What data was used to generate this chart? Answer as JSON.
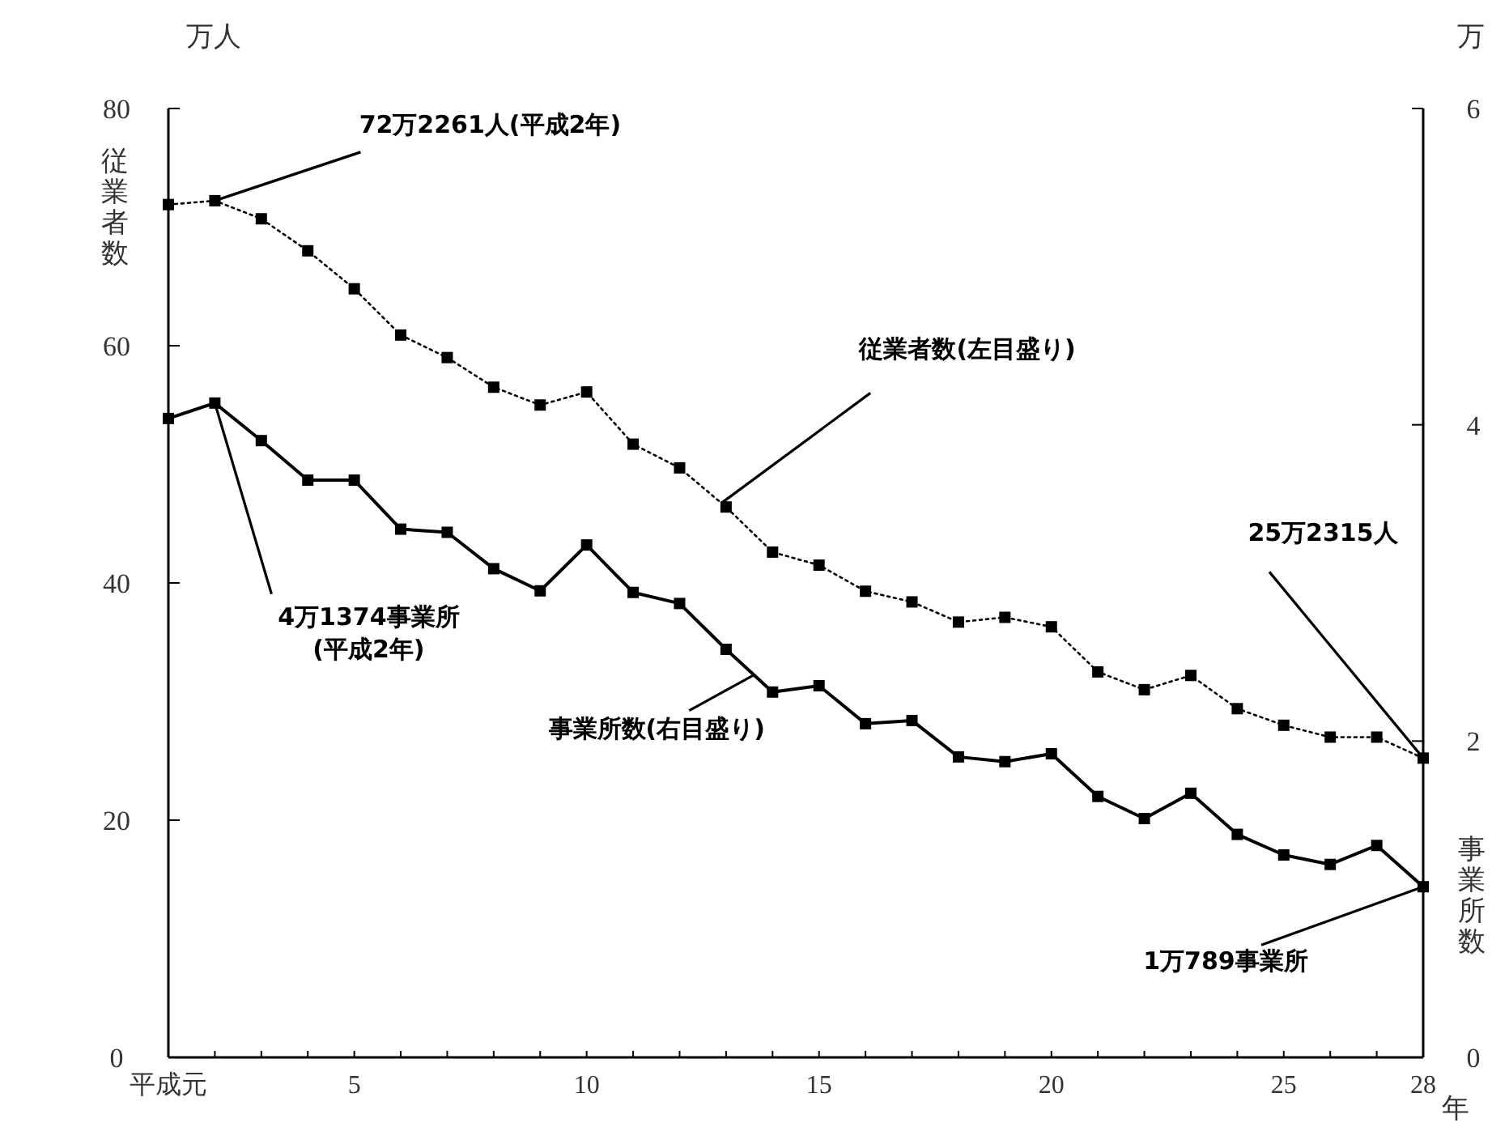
{
  "chart_data": {
    "type": "line",
    "ylabel": "従業者数",
    "y2label": "事業所数",
    "xlabel": "年",
    "annotations": [
      "万人",
      "万"
    ],
    "x": [
      1,
      2,
      3,
      4,
      5,
      6,
      7,
      8,
      9,
      10,
      11,
      12,
      13,
      14,
      15,
      16,
      17,
      18,
      19,
      20,
      21,
      22,
      23,
      24,
      25,
      26,
      27,
      28
    ],
    "xlim": [
      1,
      28
    ],
    "xticks": [
      {
        "value": 1,
        "label": "平成元"
      },
      {
        "value": 2,
        "label": null
      },
      {
        "value": 3,
        "label": null
      },
      {
        "value": 4,
        "label": null
      },
      5,
      {
        "value": 6,
        "label": null
      },
      {
        "value": 7,
        "label": null
      },
      {
        "value": 8,
        "label": null
      },
      {
        "value": 9,
        "label": null
      },
      10,
      {
        "value": 11,
        "label": null
      },
      {
        "value": 12,
        "label": null
      },
      {
        "value": 13,
        "label": null
      },
      {
        "value": 14,
        "label": null
      },
      15,
      {
        "value": 16,
        "label": null
      },
      {
        "value": 17,
        "label": null
      },
      {
        "value": 18,
        "label": null
      },
      {
        "value": 19,
        "label": null
      },
      20,
      {
        "value": 21,
        "label": null
      },
      {
        "value": 22,
        "label": null
      },
      {
        "value": 23,
        "label": null
      },
      {
        "value": 24,
        "label": null
      },
      25,
      {
        "value": 26,
        "label": null
      },
      {
        "value": 27,
        "label": null
      },
      28
    ],
    "ylim": [
      0,
      80
    ],
    "yticks": [
      0,
      20,
      40,
      60,
      80
    ],
    "y2lim": [
      0,
      6
    ],
    "y2ticks": [
      0,
      2,
      4,
      6
    ],
    "marker": "square",
    "grid": false,
    "series": [
      {
        "name": "従業者数(左目盛り)",
        "color": "#000000",
        "line_style": "dotted",
        "values": [
          71.9,
          72.2261,
          70.7,
          68.0,
          64.8,
          60.9,
          59.0,
          56.5,
          55.0,
          56.1,
          51.7,
          49.7,
          46.4,
          42.6,
          41.5,
          39.3,
          38.4,
          36.7,
          37.1,
          36.3,
          32.5,
          31.0,
          32.2,
          29.4,
          28.0,
          27.0,
          27.0,
          25.2315
        ],
        "value_labels": [
          null,
          "72万2261人(平成2年)",
          null,
          null,
          null,
          null,
          null,
          null,
          null,
          null,
          null,
          null,
          null,
          null,
          null,
          null,
          null,
          null,
          null,
          null,
          null,
          null,
          null,
          null,
          null,
          null,
          null,
          "25万2315人"
        ]
      },
      {
        "name": "事業所数(右目盛り)",
        "color": "#000000",
        "line_style": "solid",
        "axis": "y2",
        "values": [
          4.04,
          4.1374,
          3.9,
          3.65,
          3.65,
          3.34,
          3.32,
          3.09,
          2.95,
          3.24,
          2.94,
          2.87,
          2.58,
          2.31,
          2.35,
          2.11,
          2.13,
          1.9,
          1.87,
          1.92,
          1.65,
          1.51,
          1.67,
          1.41,
          1.28,
          1.22,
          1.34,
          1.0789
        ],
        "value_labels": [
          null,
          "4万1374事業所\n(平成2年)",
          null,
          null,
          null,
          null,
          null,
          null,
          null,
          null,
          null,
          null,
          null,
          null,
          null,
          null,
          null,
          null,
          null,
          null,
          null,
          null,
          null,
          null,
          null,
          null,
          null,
          "1万789事業所"
        ]
      }
    ]
  }
}
